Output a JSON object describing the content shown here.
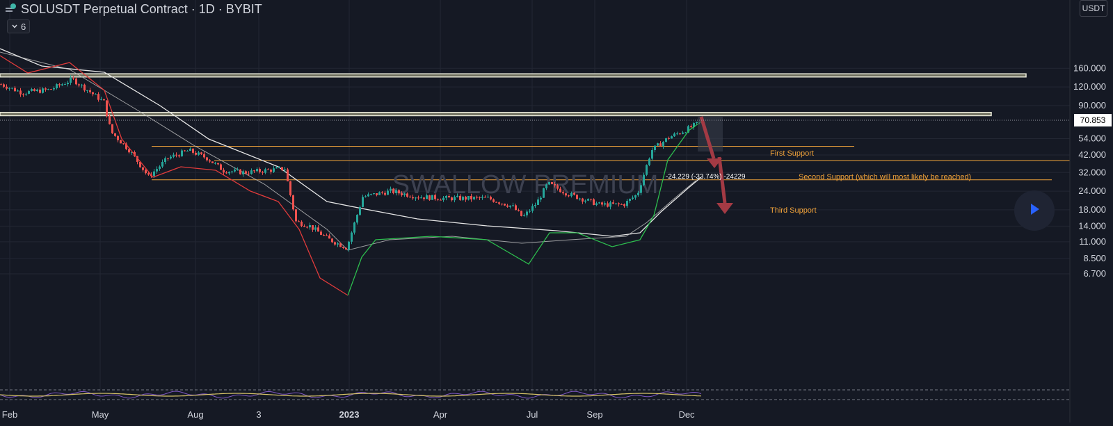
{
  "header": {
    "title": "SOLUSDT Perpetual Contract · 1D · BYBIT",
    "indicators_toggle_label": "6"
  },
  "price_scale": {
    "currency_label": "USDT",
    "last_price": "70.853"
  },
  "watermark": "SWALLOW PREMIUM",
  "colors": {
    "background": "#151924",
    "grid": "#232733",
    "up_candle": "#26a69a",
    "down_candle": "#ef5350",
    "support_line": "#f0a23a",
    "resistance_zone_fill": "#8c8c72",
    "ema_fast": "#2dbd4e",
    "ema_fast_down": "#e03b3b",
    "ma_slow": "#e6e6e6",
    "arrow": "#a33a44",
    "rsi_line": "#d8c468",
    "rsi_band": "#7e57c2"
  },
  "annotations": {
    "first_support": "First Support",
    "second_support": "Second Support (which will most likely be reached)",
    "third_support": "Third Support",
    "measure_label": "-24.229 (-33.74%) -24229"
  },
  "chart_data": {
    "type": "candlestick",
    "symbol": "SOLUSDT",
    "interval": "1D",
    "exchange": "BYBIT",
    "y_scale": "log",
    "y_ticks": [
      "160.000",
      "120.000",
      "90.000",
      "54.000",
      "42.000",
      "32.000",
      "24.000",
      "18.000",
      "14.000",
      "11.000",
      "8.500",
      "6.700"
    ],
    "x_ticks": [
      "Feb",
      "May",
      "Aug",
      "3",
      "2023",
      "Apr",
      "Jul",
      "Sep",
      "Dec"
    ],
    "last_price": 70.853,
    "resistance_zones": [
      {
        "low": 140,
        "high": 147
      },
      {
        "low": 77,
        "high": 81
      }
    ],
    "support_levels": [
      {
        "label": "First Support",
        "price": 48
      },
      {
        "label": "Second Support (which will most likely be reached)",
        "price": 38.5
      },
      {
        "label": "Third Support",
        "price": 28.6
      }
    ],
    "price_path": [
      [
        "Feb",
        125
      ],
      [
        "Mar",
        110
      ],
      [
        "Apr",
        115
      ],
      [
        "Apr",
        135
      ],
      [
        "May",
        95
      ],
      [
        "May",
        60
      ],
      [
        "Jun",
        45
      ],
      [
        "Jun",
        30
      ],
      [
        "Jul",
        40
      ],
      [
        "Aug",
        45
      ],
      [
        "Aug",
        40
      ],
      [
        "Sep",
        33
      ],
      [
        "Oct",
        32
      ],
      [
        "Oct",
        34
      ],
      [
        "Nov",
        15
      ],
      [
        "Nov",
        14
      ],
      [
        "Dec",
        11.5
      ],
      [
        "2023",
        10
      ],
      [
        "Jan",
        22
      ],
      [
        "Feb",
        24
      ],
      [
        "Mar",
        22
      ],
      [
        "Apr",
        21.5
      ],
      [
        "May",
        21.5
      ],
      [
        "Jun",
        19
      ],
      [
        "Jun",
        16
      ],
      [
        "Jul",
        20
      ],
      [
        "Jul",
        27
      ],
      [
        "Aug",
        23
      ],
      [
        "Sep",
        19.5
      ],
      [
        "Oct",
        19.5
      ],
      [
        "Oct",
        23
      ],
      [
        "Nov",
        45
      ],
      [
        "Nov",
        55
      ],
      [
        "Dec",
        62
      ],
      [
        "Dec",
        70.853
      ]
    ],
    "series": [
      {
        "values": "fast EMA — green above price, red below"
      },
      {
        "values": "slower moving averages"
      }
    ]
  }
}
